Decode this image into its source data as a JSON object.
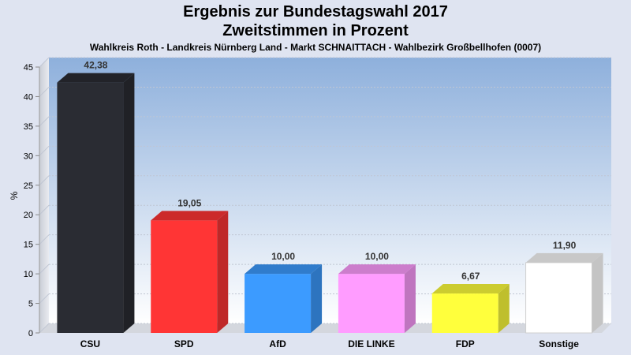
{
  "chart_data": {
    "type": "bar",
    "title": "Ergebnis zur Bundestagswahl 2017",
    "subtitle": "Zweitstimmen in Prozent",
    "caption": "Wahlkreis Roth - Landkreis Nürnberg Land - Markt SCHNAITTACH - Wahlbezirk Großbellhofen (0007)",
    "ylabel": "%",
    "xlabel": "",
    "ylim": [
      0,
      45
    ],
    "yticks": [
      "0",
      "5",
      "10",
      "15",
      "20",
      "25",
      "30",
      "35",
      "40",
      "45"
    ],
    "categories": [
      "CSU",
      "SPD",
      "AfD",
      "DIE LINKE",
      "FDP",
      "Sonstige"
    ],
    "values": [
      42.38,
      19.05,
      10.0,
      10.0,
      6.67,
      11.9
    ],
    "value_labels": [
      "42,38",
      "19,05",
      "10,00",
      "10,00",
      "6,67",
      "11,90"
    ],
    "colors": [
      "#2a2c33",
      "#ff3535",
      "#3c9bff",
      "#ff9cff",
      "#ffff3c",
      "#ffffff"
    ],
    "grid": true,
    "legend": "none"
  }
}
